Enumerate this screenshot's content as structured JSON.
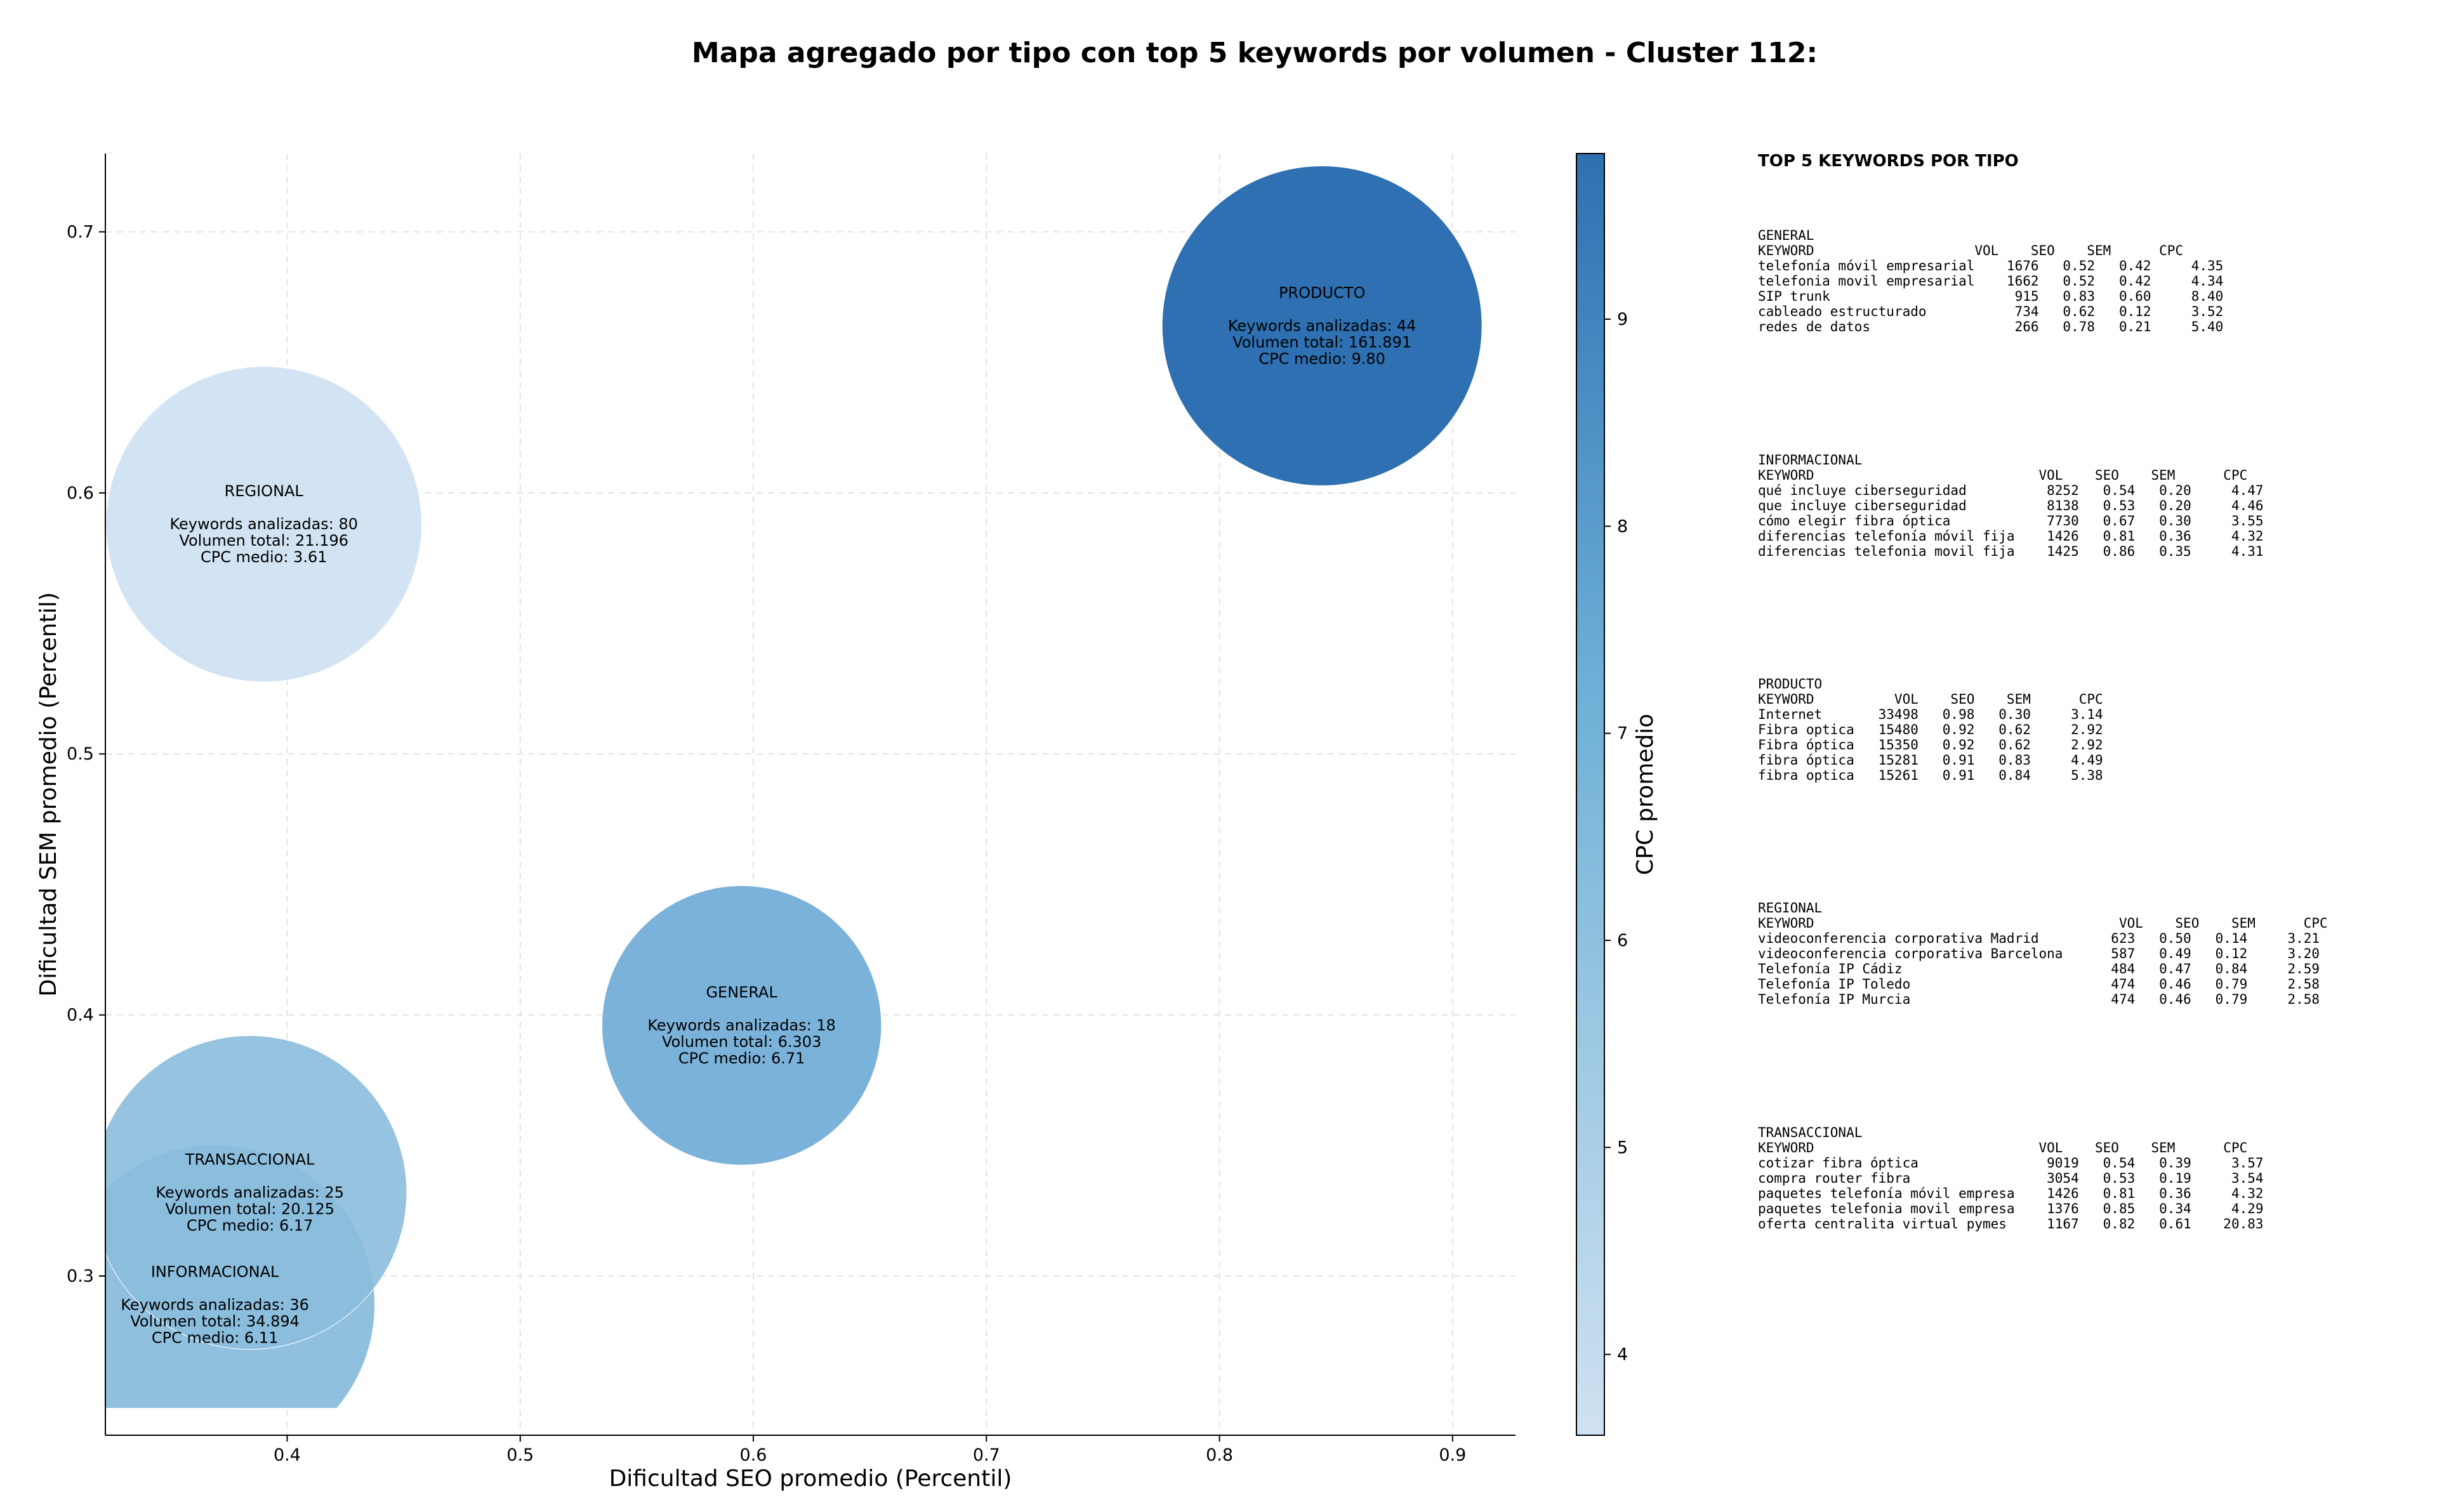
{
  "chart_data": {
    "type": "scatter",
    "title": "Mapa agregado por tipo con top 5 keywords por volumen - Cluster 112:",
    "xlabel": "Dificultad SEO promedio (Percentil)",
    "ylabel": "Dificultad SEM promedio (Percentil)",
    "xlim": [
      0.322,
      0.927
    ],
    "ylim": [
      0.239,
      0.73
    ],
    "xticks": [
      "0.4",
      "0.5",
      "0.6",
      "0.7",
      "0.8",
      "0.9"
    ],
    "yticks": [
      "0.3",
      "0.4",
      "0.5",
      "0.6",
      "0.7"
    ],
    "grid": true,
    "colorbar": {
      "label": "CPC promedio",
      "range": [
        3.61,
        9.8
      ],
      "ticks": [
        "4",
        "5",
        "6",
        "7",
        "8",
        "9"
      ],
      "color_low": "#d0e1f2",
      "color_high": "#2e70b1"
    },
    "points": [
      {
        "name": "PRODUCTO",
        "x": 0.844,
        "y": 0.664,
        "cpc": 9.8,
        "volume": 161891,
        "color": "#2e70b1",
        "opacity": 1.0,
        "lines": [
          "Keywords analizadas: 44",
          "Volumen total: 161.891",
          "CPC medio: 9.80"
        ]
      },
      {
        "name": "REGIONAL",
        "x": 0.39,
        "y": 0.588,
        "cpc": 3.61,
        "volume": 21196,
        "color": "#d0e1f2",
        "opacity": 0.95,
        "lines": [
          "Keywords analizadas: 80",
          "Volumen total: 21.196",
          "CPC medio: 3.61"
        ]
      },
      {
        "name": "GENERAL",
        "x": 0.595,
        "y": 0.396,
        "cpc": 6.71,
        "volume": 6303,
        "color": "#7bb2da",
        "opacity": 1.0,
        "lines": [
          "Keywords analizadas: 18",
          "Volumen total: 6.303",
          "CPC medio: 6.71"
        ]
      },
      {
        "name": "INFORMACIONAL",
        "x": 0.369,
        "y": 0.289,
        "cpc": 6.11,
        "volume": 34894,
        "color": "#8bbddd",
        "opacity": 0.95,
        "lines": [
          "Keywords analizadas: 36",
          "Volumen total: 34.894",
          "CPC medio: 6.11"
        ]
      },
      {
        "name": "TRANSACCIONAL",
        "x": 0.384,
        "y": 0.332,
        "cpc": 6.17,
        "volume": 20125,
        "color": "#8bbddd",
        "opacity": 0.9,
        "lines": [
          "Keywords analizadas: 25",
          "Volumen total: 20.125",
          "CPC medio: 6.17"
        ]
      }
    ]
  },
  "side_panel": {
    "title": "TOP 5 KEYWORDS POR TIPO",
    "blocks": [
      {
        "name": "GENERAL",
        "lines": [
          "KEYWORD                    VOL    SEO    SEM      CPC",
          "telefonía móvil empresarial    1676   0.52   0.42     4.35",
          "telefonia movil empresarial    1662   0.52   0.42     4.34",
          "SIP trunk                       915   0.83   0.60     8.40",
          "cableado estructurado           734   0.62   0.12     3.52",
          "redes de datos                  266   0.78   0.21     5.40"
        ]
      },
      {
        "name": "INFORMACIONAL",
        "lines": [
          "KEYWORD                            VOL    SEO    SEM      CPC",
          "qué incluye ciberseguridad          8252   0.54   0.20     4.47",
          "que incluye ciberseguridad          8138   0.53   0.20     4.46",
          "cómo elegir fibra óptica            7730   0.67   0.30     3.55",
          "diferencias telefonía móvil fija    1426   0.81   0.36     4.32",
          "diferencias telefonia movil fija    1425   0.86   0.35     4.31"
        ]
      },
      {
        "name": "PRODUCTO",
        "lines": [
          "KEYWORD          VOL    SEO    SEM      CPC",
          "Internet       33498   0.98   0.30     3.14",
          "Fibra optica   15480   0.92   0.62     2.92",
          "Fibra óptica   15350   0.92   0.62     2.92",
          "fibra óptica   15281   0.91   0.83     4.49",
          "fibra optica   15261   0.91   0.84     5.38"
        ]
      },
      {
        "name": "REGIONAL",
        "lines": [
          "KEYWORD                                      VOL    SEO    SEM      CPC",
          "videoconferencia corporativa Madrid         623   0.50   0.14     3.21",
          "videoconferencia corporativa Barcelona      587   0.49   0.12     3.20",
          "Telefonía IP Cádiz                          484   0.47   0.84     2.59",
          "Telefonía IP Toledo                         474   0.46   0.79     2.58",
          "Telefonía IP Murcia                         474   0.46   0.79     2.58"
        ]
      },
      {
        "name": "TRANSACCIONAL",
        "lines": [
          "KEYWORD                            VOL    SEO    SEM      CPC",
          "cotizar fibra óptica                9019   0.54   0.39     3.57",
          "compra router fibra                 3054   0.53   0.19     3.54",
          "paquetes telefonía móvil empresa    1426   0.81   0.36     4.32",
          "paquetes telefonia movil empresa    1376   0.85   0.34     4.29",
          "oferta centralita virtual pymes     1167   0.82   0.61    20.83"
        ]
      }
    ]
  }
}
